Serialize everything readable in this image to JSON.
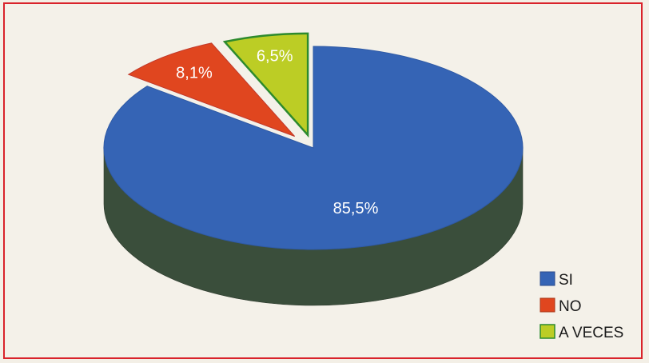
{
  "chart_data": {
    "type": "pie",
    "style": "3d-exploded",
    "slices": [
      {
        "label": "SI",
        "value": 85.5,
        "display": "85,5%",
        "color": "#3564b5",
        "side_color": "#3a4e3b"
      },
      {
        "label": "NO",
        "value": 8.1,
        "display": "8,1%",
        "color": "#e0461f",
        "side_color": "#b33a18"
      },
      {
        "label": "A VECES",
        "value": 6.5,
        "display": "6,5%",
        "color": "#bccd25",
        "side_color": "#7f8d19"
      }
    ],
    "legend": {
      "position": "bottom-right",
      "items": [
        "SI",
        "NO",
        "A VECES"
      ]
    },
    "border_color": "#d9232b"
  }
}
